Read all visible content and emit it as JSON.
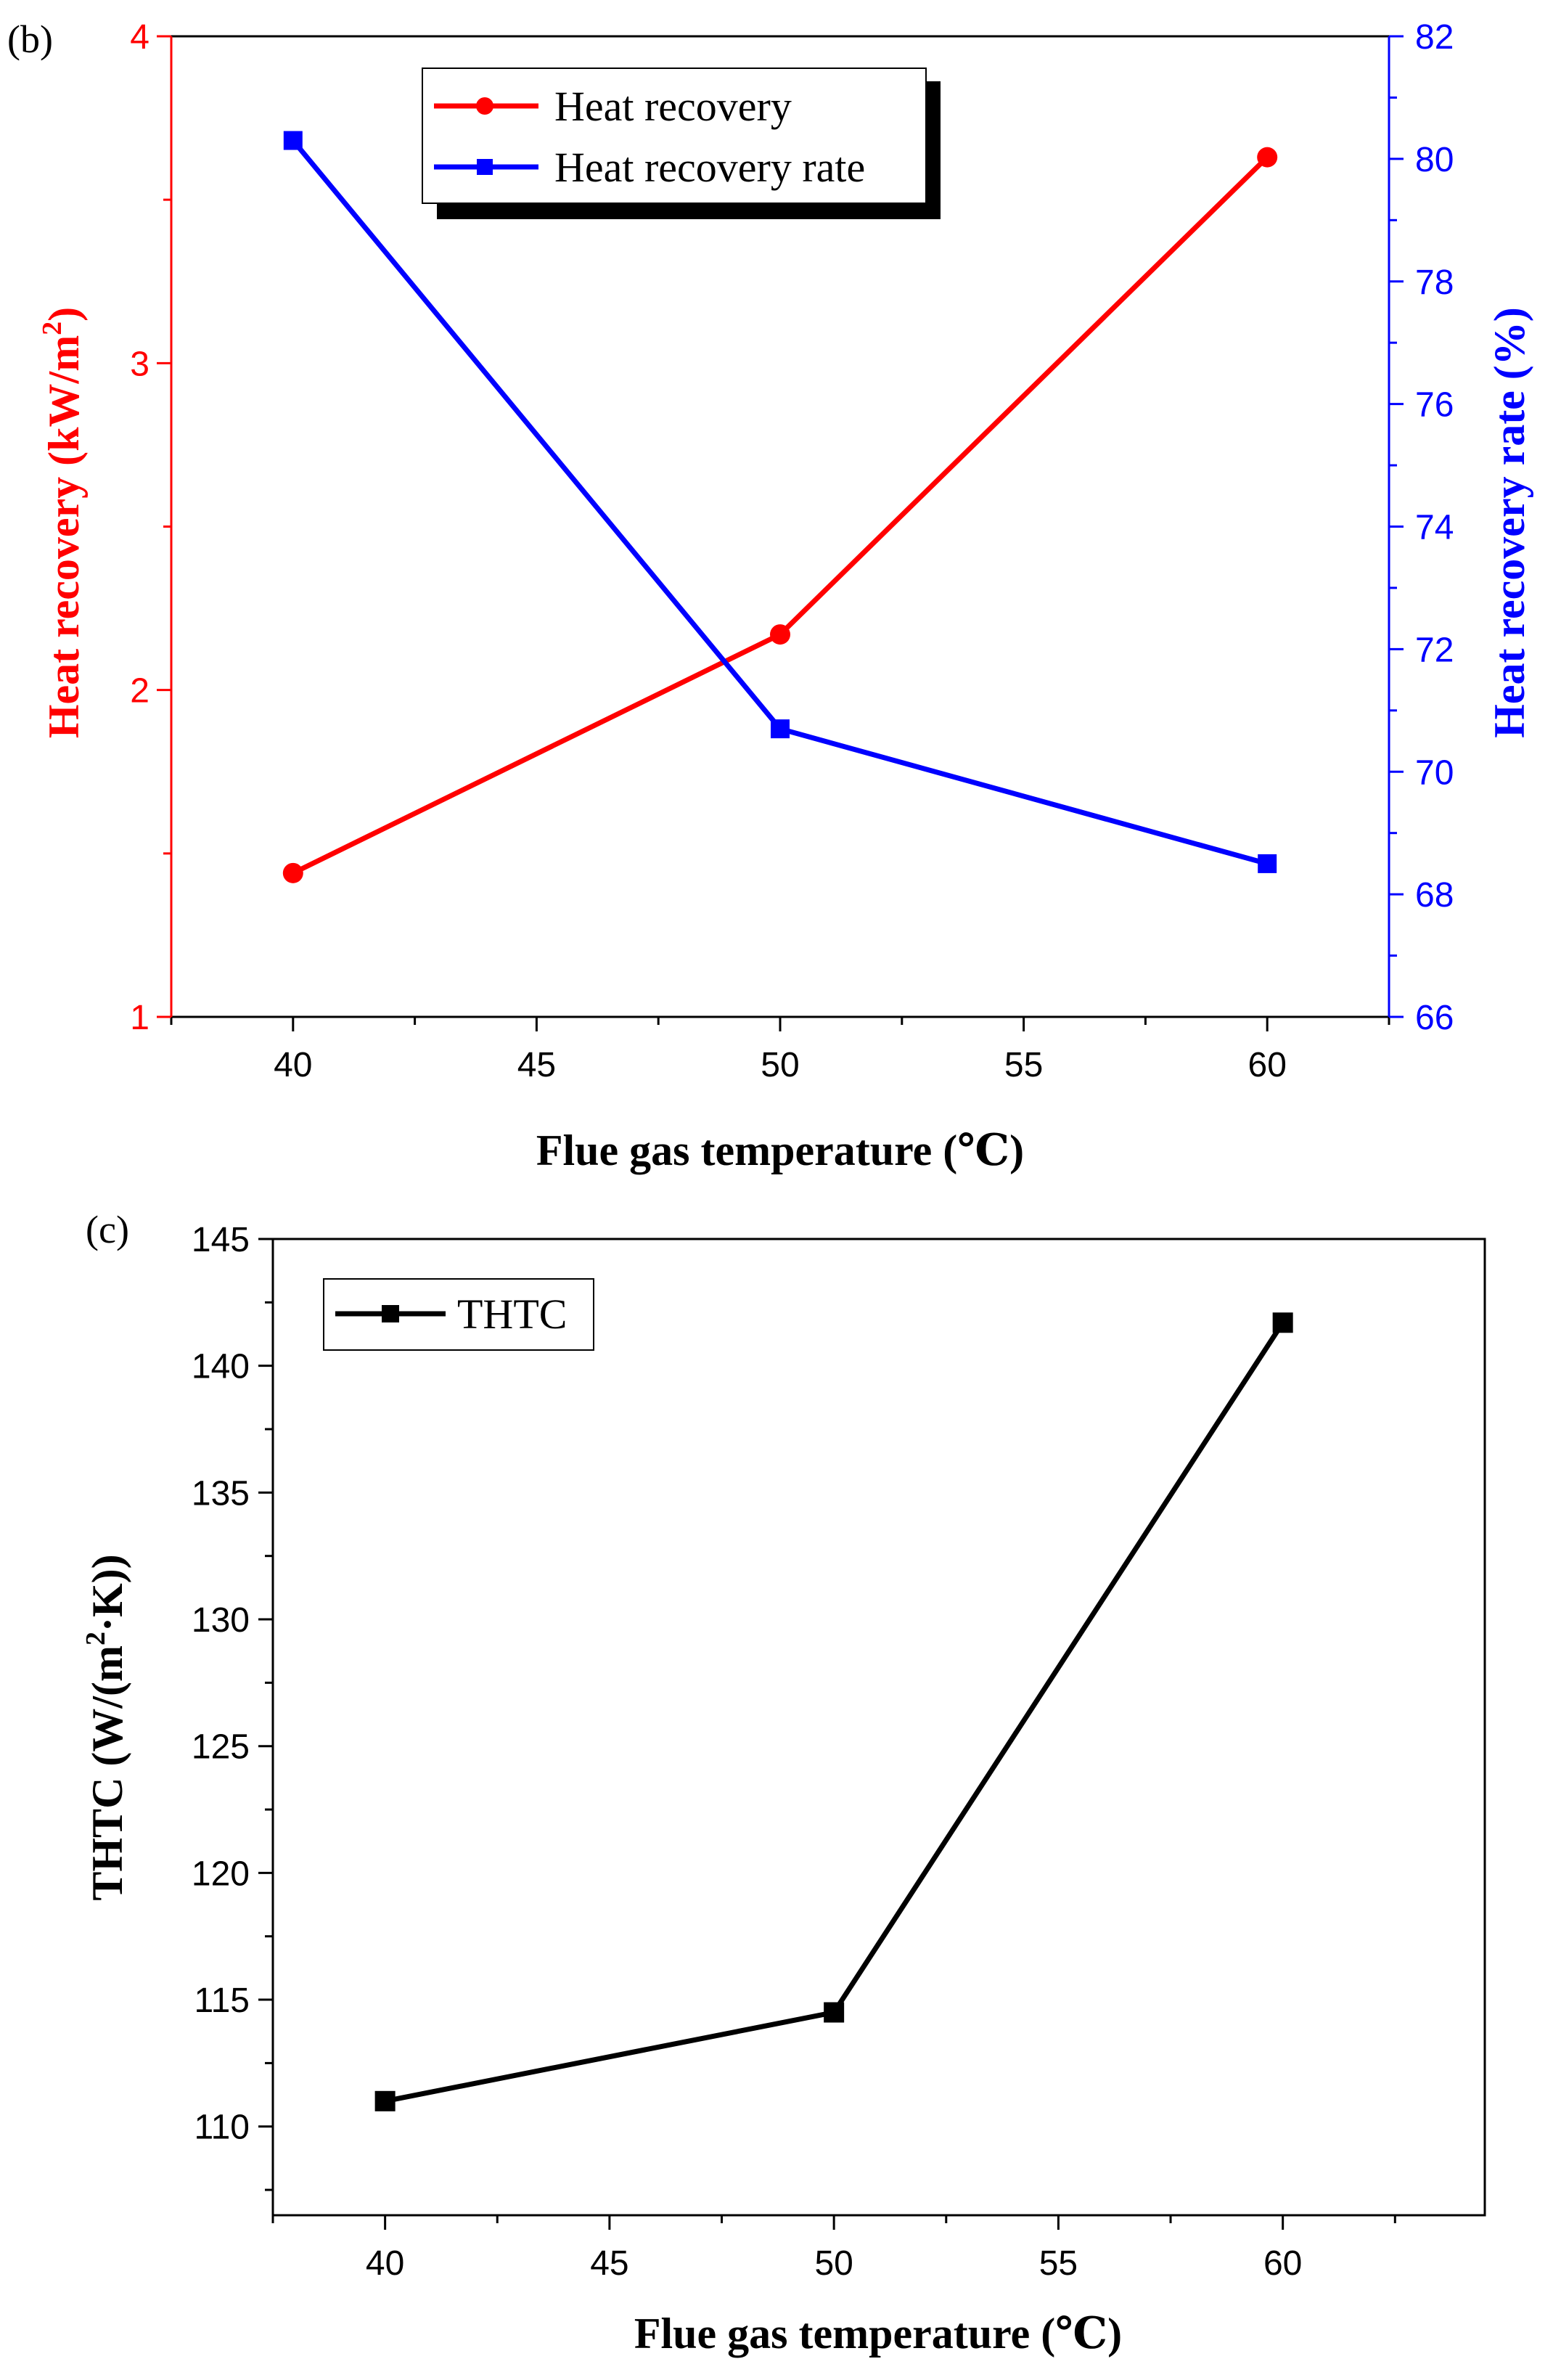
{
  "chart_data": [
    {
      "type": "line",
      "panel_label": "(b)",
      "x": [
        40,
        50,
        60
      ],
      "xlim": [
        37.5,
        62.5
      ],
      "xticks": [
        40,
        45,
        50,
        55,
        60
      ],
      "xlabel": "Flue gas temperature (℃)",
      "ylabel_left": "Heat recovery (kW/m²)",
      "ylabel_left_parts": {
        "pre": "Heat recovery (kW/m",
        "sup": "2",
        "post": ")"
      },
      "ylim_left": [
        1,
        4
      ],
      "yticks_left": [
        1,
        2,
        3,
        4
      ],
      "ylabel_right": "Heat recovery rate (%)",
      "ylim_right": [
        66,
        82
      ],
      "yticks_right": [
        66,
        68,
        70,
        72,
        74,
        76,
        78,
        80,
        82
      ],
      "legend_position": "top-center",
      "series": [
        {
          "name": "Heat recovery",
          "axis": "left",
          "marker": "circle",
          "color": "#ff0000",
          "values": [
            1.44,
            2.17,
            3.63
          ]
        },
        {
          "name": "Heat recovery rate",
          "axis": "right",
          "marker": "square",
          "color": "#0000ff",
          "values": [
            80.3,
            70.7,
            68.5
          ]
        }
      ]
    },
    {
      "type": "line",
      "panel_label": "(c)",
      "x": [
        40,
        50,
        60
      ],
      "xlim": [
        37.5,
        64.5
      ],
      "xticks": [
        40,
        45,
        50,
        55,
        60
      ],
      "xlabel": "Flue gas temperature (℃)",
      "ylabel": "THTC (W/(m²·K))",
      "ylabel_parts": {
        "pre": "THTC (W/(m",
        "sup": "2",
        "post": "·K))"
      },
      "ylim": [
        106.5,
        145
      ],
      "yticks": [
        110,
        115,
        120,
        125,
        130,
        135,
        140,
        145
      ],
      "legend_position": "top-left",
      "series": [
        {
          "name": "THTC",
          "marker": "square",
          "color": "#000000",
          "values": [
            111.0,
            114.5,
            141.7
          ]
        }
      ]
    }
  ]
}
